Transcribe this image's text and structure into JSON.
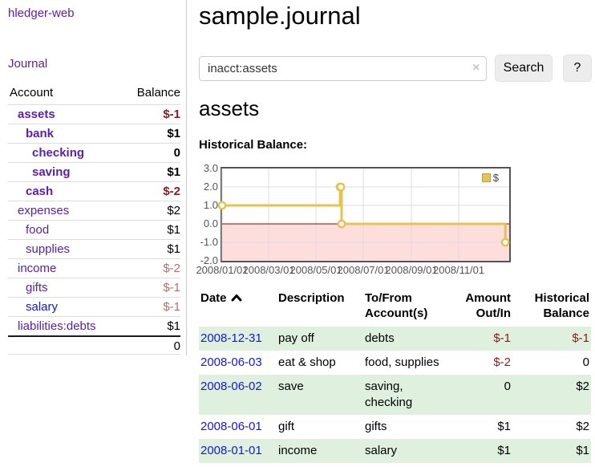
{
  "sidebar": {
    "brand": "hledger-web",
    "journal_link": "Journal",
    "accounts_table": {
      "headers": [
        "Account",
        "Balance"
      ],
      "rows": [
        {
          "name": "assets",
          "balance": "$-1"
        },
        {
          "name": "bank",
          "balance": "$1"
        },
        {
          "name": "checking",
          "balance": "0"
        },
        {
          "name": "saving",
          "balance": "$1"
        },
        {
          "name": "cash",
          "balance": "$-2"
        },
        {
          "name": "expenses",
          "balance": "$2"
        },
        {
          "name": "food",
          "balance": "$1"
        },
        {
          "name": "supplies",
          "balance": "$1"
        },
        {
          "name": "income",
          "balance": "$-2"
        },
        {
          "name": "gifts",
          "balance": "$-1"
        },
        {
          "name": "salary",
          "balance": "$-1"
        },
        {
          "name": "liabilities:debts",
          "balance": "$1"
        }
      ],
      "total": "0"
    }
  },
  "header": {
    "title": "sample.journal"
  },
  "search": {
    "value": "inacct:assets",
    "clear_icon": "×",
    "button_label": "Search",
    "help_label": "?"
  },
  "account_page": {
    "heading": "assets"
  },
  "chart_data": {
    "type": "line",
    "style": "step",
    "title": "Historical Balance:",
    "xlabel": "",
    "ylabel": "",
    "series": [
      {
        "name": "$",
        "color": "#e8c24e",
        "points": [
          [
            "2008-01-01",
            1
          ],
          [
            "2008-06-01",
            2
          ],
          [
            "2008-06-02",
            2
          ],
          [
            "2008-06-03",
            0
          ],
          [
            "2008-12-31",
            -1
          ]
        ]
      }
    ],
    "x_range": [
      "2008-01-01",
      "2009-01-05"
    ],
    "ylim": [
      -2,
      3
    ],
    "y_ticks": [
      "3.0",
      "2.0",
      "1.0",
      "0.0",
      "-1.0",
      "-2.0"
    ],
    "x_ticks": [
      {
        "label": "2008/01/01",
        "date": "2008-01-01"
      },
      {
        "label": "2008/03/01",
        "date": "2008-03-01"
      },
      {
        "label": "2008/05/01",
        "date": "2008-05-01"
      },
      {
        "label": "2008/07/01",
        "date": "2008-07-01"
      },
      {
        "label": "2008/09/01",
        "date": "2008-09-01"
      },
      {
        "label": "2008/11/01",
        "date": "2008-11-01"
      }
    ],
    "legend": {
      "position": "top-right"
    },
    "grid": true,
    "negative_region_color": "#fedddd",
    "zero_line_color": "#8b0000",
    "grid_color": "#dcdcdc",
    "border_color": "#545454"
  },
  "transactions": {
    "headers": {
      "date": "Date",
      "description": "Description",
      "accounts": "To/From Account(s)",
      "amount": "Amount Out/In",
      "balance": "Historical Balance"
    },
    "sort": "ascending",
    "rows": [
      {
        "date": "2008-12-31",
        "description": "pay off",
        "accounts": "debts",
        "amount": "$-1",
        "balance": "$-1"
      },
      {
        "date": "2008-06-03",
        "description": "eat & shop",
        "accounts": "food, supplies",
        "amount": "$-2",
        "balance": "0"
      },
      {
        "date": "2008-06-02",
        "description": "save",
        "accounts": "saving, checking",
        "amount": "0",
        "balance": "$2"
      },
      {
        "date": "2008-06-01",
        "description": "gift",
        "accounts": "gifts",
        "amount": "$1",
        "balance": "$2"
      },
      {
        "date": "2008-01-01",
        "description": "income",
        "accounts": "salary",
        "amount": "$1",
        "balance": "$1"
      }
    ]
  },
  "colors": {
    "link_purple": "#5b21a3",
    "link_blue": "#1414e0",
    "negative_strong": "#8c1a1a",
    "negative_muted": "#b36d6d",
    "row_stripe_green": "#dff0df",
    "chart_line_gold": "#e8c24e"
  }
}
